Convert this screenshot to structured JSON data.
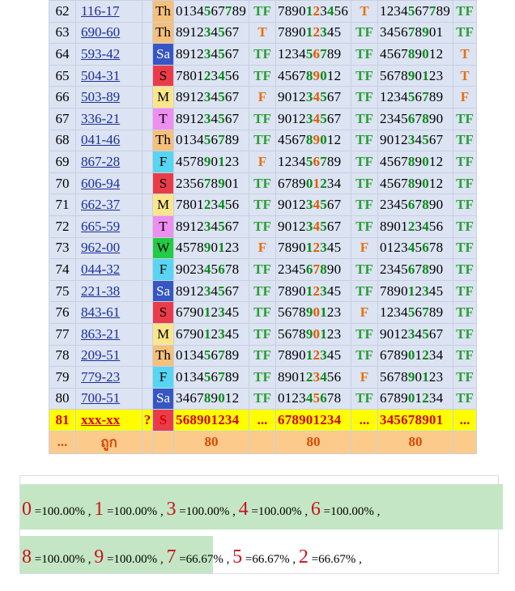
{
  "rows": [
    {
      "n": "62",
      "code": "116-17",
      "day": "Th",
      "s1": "0134567789",
      "t1": "TF",
      "s2": "7890123456",
      "t2": "T",
      "s3": "1234567789",
      "t3": "TF"
    },
    {
      "n": "63",
      "code": "690-60",
      "day": "Th",
      "s1": "891234567",
      "t1": "T",
      "s2": "789012345",
      "t2": "TF",
      "s3": "345678901",
      "t3": "TF"
    },
    {
      "n": "64",
      "code": "593-42",
      "day": "Sa",
      "s1": "891234567",
      "t1": "TF",
      "s2": "123456789",
      "t2": "TF",
      "s3": "456789012",
      "t3": "T"
    },
    {
      "n": "65",
      "code": "504-31",
      "day": "S",
      "s1": "780123456",
      "t1": "TF",
      "s2": "456789012",
      "t2": "TF",
      "s3": "567890123",
      "t3": "T"
    },
    {
      "n": "66",
      "code": "503-89",
      "day": "M",
      "s1": "891234567",
      "t1": "F",
      "s2": "901234567",
      "t2": "TF",
      "s3": "123456789",
      "t3": "F"
    },
    {
      "n": "67",
      "code": "336-21",
      "day": "T",
      "s1": "891234567",
      "t1": "TF",
      "s2": "901234567",
      "t2": "TF",
      "s3": "234567890",
      "t3": "TF"
    },
    {
      "n": "68",
      "code": "041-46",
      "day": "Th",
      "s1": "013456789",
      "t1": "TF",
      "s2": "456789012",
      "t2": "TF",
      "s3": "901234567",
      "t3": "TF"
    },
    {
      "n": "69",
      "code": "867-28",
      "day": "F",
      "s1": "457890123",
      "t1": "F",
      "s2": "123456789",
      "t2": "TF",
      "s3": "456789012",
      "t3": "TF"
    },
    {
      "n": "70",
      "code": "606-94",
      "day": "S",
      "s1": "235678901",
      "t1": "TF",
      "s2": "678901234",
      "t2": "TF",
      "s3": "456789012",
      "t3": "TF"
    },
    {
      "n": "71",
      "code": "662-37",
      "day": "M",
      "s1": "780123456",
      "t1": "TF",
      "s2": "901234567",
      "t2": "TF",
      "s3": "234567890",
      "t3": "TF"
    },
    {
      "n": "72",
      "code": "665-59",
      "day": "T",
      "s1": "891234567",
      "t1": "TF",
      "s2": "901234567",
      "t2": "TF",
      "s3": "890123456",
      "t3": "TF"
    },
    {
      "n": "73",
      "code": "962-00",
      "day": "W",
      "s1": "457890123",
      "t1": "F",
      "s2": "789012345",
      "t2": "F",
      "s3": "012345678",
      "t3": "TF"
    },
    {
      "n": "74",
      "code": "044-32",
      "day": "F",
      "s1": "902345678",
      "t1": "TF",
      "s2": "234567890",
      "t2": "TF",
      "s3": "234567890",
      "t3": "TF"
    },
    {
      "n": "75",
      "code": "221-38",
      "day": "Sa",
      "s1": "891234567",
      "t1": "TF",
      "s2": "789012345",
      "t2": "TF",
      "s3": "789012345",
      "t3": "TF"
    },
    {
      "n": "76",
      "code": "843-61",
      "day": "S",
      "s1": "679012345",
      "t1": "TF",
      "s2": "567890123",
      "t2": "F",
      "s3": "123456789",
      "t3": "TF"
    },
    {
      "n": "77",
      "code": "863-21",
      "day": "M",
      "s1": "679012345",
      "t1": "TF",
      "s2": "567890123",
      "t2": "TF",
      "s3": "901234567",
      "t3": "TF"
    },
    {
      "n": "78",
      "code": "209-51",
      "day": "Th",
      "s1": "013456789",
      "t1": "TF",
      "s2": "789012345",
      "t2": "TF",
      "s3": "678901234",
      "t3": "TF"
    },
    {
      "n": "79",
      "code": "779-23",
      "day": "F",
      "s1": "013456789",
      "t1": "TF",
      "s2": "890123456",
      "t2": "F",
      "s3": "567890123",
      "t3": "TF"
    },
    {
      "n": "80",
      "code": "700-51",
      "day": "Sa",
      "s1": "346789012",
      "t1": "TF",
      "s2": "012345678",
      "t2": "TF",
      "s3": "678901234",
      "t3": "TF"
    }
  ],
  "current_row": {
    "n": "81",
    "code": "xxx-xx",
    "q": "?",
    "day": "S",
    "s1": "568901234",
    "t1": "...",
    "s2": "678901234",
    "t2": "...",
    "s3": "345678901",
    "t3": "..."
  },
  "total_row": {
    "lead": "...",
    "label": "ถูก",
    "v1": "80",
    "v2": "80",
    "v3": "80"
  },
  "stats_line1": [
    {
      "digit": "0",
      "pct": "=100.00%"
    },
    {
      "digit": "1",
      "pct": "=100.00%"
    },
    {
      "digit": "3",
      "pct": "=100.00%"
    },
    {
      "digit": "4",
      "pct": "=100.00%"
    },
    {
      "digit": "6",
      "pct": "=100.00%"
    }
  ],
  "stats_line2": [
    {
      "digit": "8",
      "pct": "=100.00%"
    },
    {
      "digit": "9",
      "pct": "=100.00%"
    },
    {
      "digit": "7",
      "pct": "=66.67%"
    },
    {
      "digit": "5",
      "pct": "=66.67%"
    },
    {
      "digit": "2",
      "pct": "=66.67%"
    }
  ],
  "colors": {
    "row_bg": "#dce3f2",
    "highlight_green": "#c4e6c4",
    "current_row_bg": "#fffe00",
    "total_row_bg": "#fccb8c",
    "digit_red": "#c8141e"
  }
}
